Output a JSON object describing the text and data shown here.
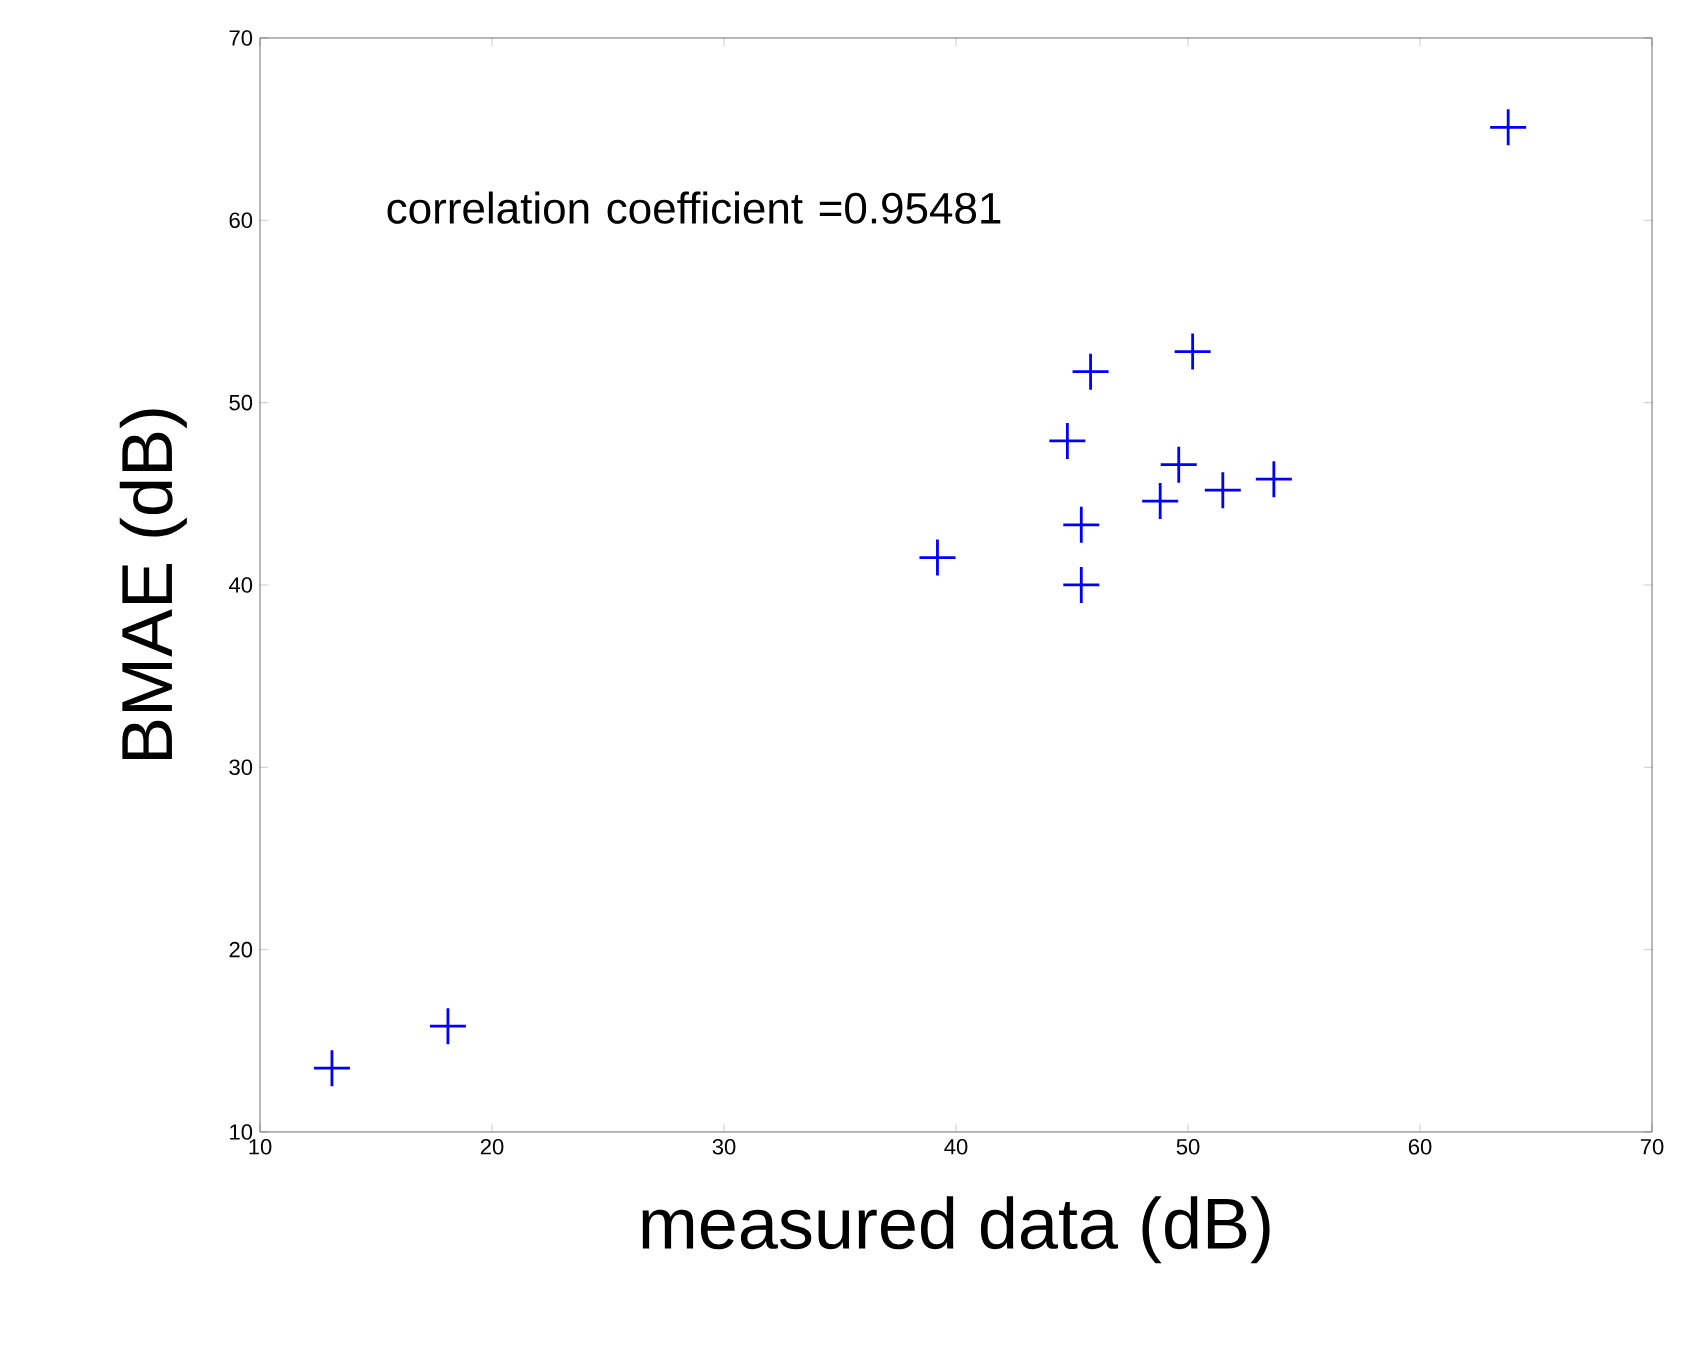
{
  "chart_data": {
    "type": "scatter",
    "xlabel": "measured  data (dB)",
    "ylabel": "BMAE (dB)",
    "annotations": [
      "correlation coefficient =0.95481"
    ],
    "x": [
      13.1,
      18.1,
      39.2,
      44.8,
      45.4,
      45.4,
      45.8,
      48.8,
      49.6,
      50.2,
      51.5,
      53.7,
      63.8
    ],
    "series": [
      {
        "color": "#0000ff",
        "values": [
          13.5,
          15.8,
          41.5,
          47.9,
          43.3,
          40.0,
          51.7,
          44.6,
          46.6,
          52.8,
          45.2,
          45.8,
          65.1
        ]
      }
    ],
    "xlim": [
      10,
      70
    ],
    "ylim": [
      10,
      70
    ],
    "xticks": [
      10,
      20,
      30,
      40,
      50,
      60,
      70
    ],
    "yticks": [
      10,
      20,
      30,
      40,
      50,
      60,
      70
    ],
    "grid": false,
    "marker": "cross"
  }
}
